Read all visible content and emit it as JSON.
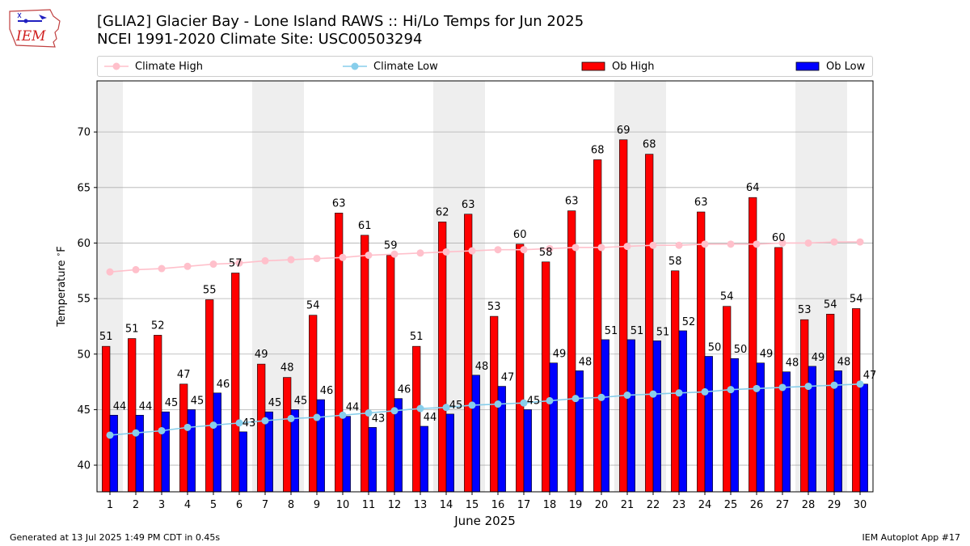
{
  "header": {
    "logo_text": "IEM",
    "title_line1": "[GLIA2] Glacier Bay - Lone Island RAWS :: Hi/Lo Temps for Jun 2025",
    "title_line2": "NCEI 1991-2020 Climate Site: USC00503294"
  },
  "colors": {
    "climate_high": "#ffc0cb",
    "climate_low": "#87ceeb",
    "ob_high": "#ff0000",
    "ob_low": "#0000ff",
    "weekend_band": "#eeeeee",
    "grid": "#b0b0b0"
  },
  "chart_data": {
    "type": "bar",
    "x": [
      1,
      2,
      3,
      4,
      5,
      6,
      7,
      8,
      9,
      10,
      11,
      12,
      13,
      14,
      15,
      16,
      17,
      18,
      19,
      20,
      21,
      22,
      23,
      24,
      25,
      26,
      27,
      28,
      29,
      30
    ],
    "xlabel": "June 2025",
    "ylabel": "Temperature $^\\circ$F",
    "ylim": [
      37.6,
      74.6
    ],
    "yticks": [
      40,
      45,
      50,
      55,
      60,
      65,
      70
    ],
    "grid": "horizontal",
    "legend_position": "top",
    "weekend_bands": [
      [
        1
      ],
      [
        7,
        8
      ],
      [
        14,
        15
      ],
      [
        21,
        22
      ],
      [
        28,
        29
      ]
    ],
    "series": [
      {
        "name": "Ob High",
        "kind": "bar",
        "values": [
          50.7,
          51.4,
          51.7,
          47.3,
          54.9,
          57.3,
          49.1,
          47.9,
          53.5,
          62.7,
          60.7,
          58.9,
          50.7,
          61.9,
          62.6,
          53.4,
          59.9,
          58.3,
          62.9,
          67.5,
          69.3,
          68.0,
          57.5,
          62.8,
          54.3,
          64.1,
          59.6,
          53.1,
          53.6,
          54.1
        ],
        "labels": [
          "51",
          "51",
          "52",
          "47",
          "55",
          "57",
          "49",
          "48",
          "54",
          "63",
          "61",
          "59",
          "51",
          "62",
          "63",
          "53",
          "60",
          "58",
          "63",
          "68",
          "69",
          "68",
          "58",
          "63",
          "54",
          "64",
          "60",
          "53",
          "54",
          "54"
        ]
      },
      {
        "name": "Ob Low",
        "kind": "bar",
        "values": [
          44.5,
          44.5,
          44.8,
          45.0,
          46.5,
          43.0,
          44.8,
          45.0,
          45.9,
          44.4,
          43.4,
          46.0,
          43.5,
          44.6,
          48.1,
          47.1,
          45.0,
          49.2,
          48.5,
          51.3,
          51.3,
          51.2,
          52.1,
          49.8,
          49.6,
          49.2,
          48.4,
          48.9,
          48.5,
          47.3
        ],
        "labels": [
          "44",
          "44",
          "45",
          "45",
          "46",
          "43",
          "45",
          "45",
          "46",
          "44",
          "43",
          "46",
          "44",
          "45",
          "48",
          "47",
          "45",
          "49",
          "48",
          "51",
          "51",
          "51",
          "52",
          "50",
          "50",
          "49",
          "48",
          "49",
          "48",
          "47"
        ]
      },
      {
        "name": "Climate High",
        "kind": "line",
        "values": [
          57.4,
          57.6,
          57.7,
          57.9,
          58.1,
          58.2,
          58.4,
          58.5,
          58.6,
          58.7,
          58.9,
          59.0,
          59.1,
          59.2,
          59.3,
          59.4,
          59.4,
          59.5,
          59.6,
          59.6,
          59.7,
          59.8,
          59.8,
          59.9,
          59.9,
          59.9,
          60.0,
          60.0,
          60.1,
          60.1
        ]
      },
      {
        "name": "Climate Low",
        "kind": "line",
        "values": [
          42.7,
          42.9,
          43.1,
          43.4,
          43.6,
          43.8,
          44.0,
          44.2,
          44.3,
          44.5,
          44.7,
          44.9,
          45.1,
          45.2,
          45.4,
          45.5,
          45.6,
          45.8,
          46.0,
          46.1,
          46.3,
          46.4,
          46.5,
          46.6,
          46.8,
          46.9,
          47.0,
          47.1,
          47.2,
          47.3
        ]
      }
    ]
  },
  "footer": {
    "generated": "Generated at 13 Jul 2025 1:49 PM CDT in 0.45s",
    "app": "IEM Autoplot App #17"
  }
}
